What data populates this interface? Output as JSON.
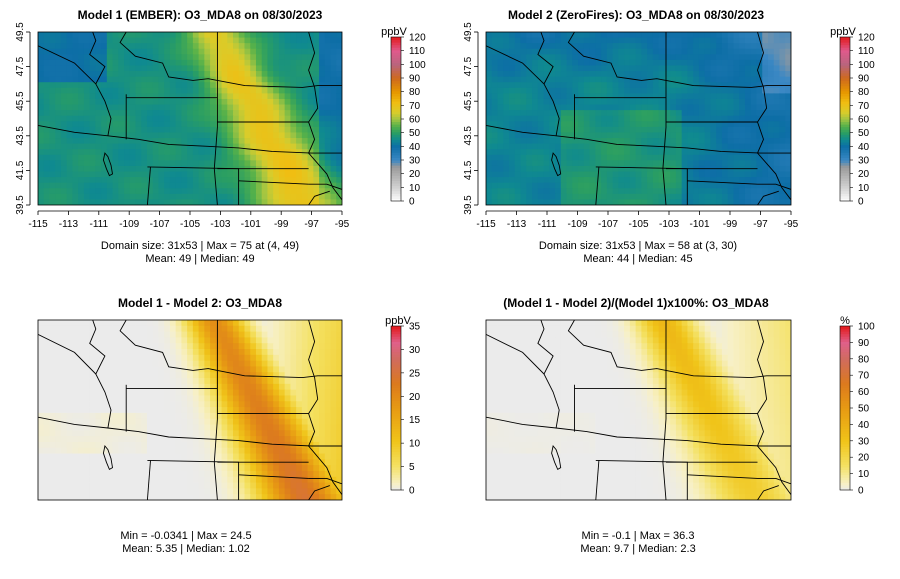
{
  "chart_data": [
    {
      "type": "heatmap",
      "title": "Model 1 (EMBER): O3_MDA8 on 08/30/2023",
      "xlabel": "",
      "ylabel": "",
      "x_ticks": [
        "-115",
        "-113",
        "-111",
        "-109",
        "-107",
        "-105",
        "-103",
        "-101",
        "-99",
        "-97",
        "-95"
      ],
      "y_ticks": [
        "39.5",
        "41.5",
        "43.5",
        "45.5",
        "47.5",
        "49.5"
      ],
      "colorbar": {
        "unit": "ppbV",
        "ticks": [
          "0",
          "10",
          "20",
          "30",
          "40",
          "50",
          "60",
          "70",
          "80",
          "90",
          "100",
          "110",
          "120"
        ],
        "range": [
          0,
          120
        ],
        "scheme": "absolute"
      },
      "stats": [
        "Domain size: 31x53 | Max = 75 at (4, 49)",
        "Mean: 49 |  Median: 49"
      ],
      "field": {
        "kind": "m1",
        "base": 47,
        "band": 72
      }
    },
    {
      "type": "heatmap",
      "title": "Model 2 (ZeroFires): O3_MDA8 on 08/30/2023",
      "xlabel": "",
      "ylabel": "",
      "x_ticks": [
        "-115",
        "-113",
        "-111",
        "-109",
        "-107",
        "-105",
        "-103",
        "-101",
        "-99",
        "-97",
        "-95"
      ],
      "y_ticks": [
        "39.5",
        "41.5",
        "43.5",
        "45.5",
        "47.5",
        "49.5"
      ],
      "colorbar": {
        "unit": "ppbV",
        "ticks": [
          "0",
          "10",
          "20",
          "30",
          "40",
          "50",
          "60",
          "70",
          "80",
          "90",
          "100",
          "110",
          "120"
        ],
        "range": [
          0,
          120
        ],
        "scheme": "absolute"
      },
      "stats": [
        "Domain size: 31x53 | Max = 58 at (3, 30)",
        "Mean: 44 |  Median: 45"
      ],
      "field": {
        "kind": "m2",
        "base": 44,
        "band": 0
      }
    },
    {
      "type": "heatmap",
      "title": "Model 1 - Model 2: O3_MDA8",
      "xlabel": "",
      "ylabel": "",
      "x_ticks": [],
      "y_ticks": [],
      "colorbar": {
        "unit": "ppbV",
        "ticks": [
          "0",
          "5",
          "10",
          "15",
          "20",
          "25",
          "30",
          "35"
        ],
        "range": [
          0,
          35
        ],
        "scheme": "diff"
      },
      "stats": [
        "Min = -0.0341 | Max = 24.5",
        "Mean: 5.35 |  Median: 1.02"
      ],
      "field": {
        "kind": "d",
        "base": 0,
        "band": 24.5
      }
    },
    {
      "type": "heatmap",
      "title": "(Model 1 - Model 2)/(Model 1)x100%: O3_MDA8",
      "xlabel": "",
      "ylabel": "",
      "x_ticks": [],
      "y_ticks": [],
      "colorbar": {
        "unit": "%",
        "ticks": [
          "0",
          "10",
          "20",
          "30",
          "40",
          "50",
          "60",
          "70",
          "80",
          "90",
          "100"
        ],
        "range": [
          0,
          100
        ],
        "scheme": "diff"
      },
      "stats": [
        "Min = -0.1 | Max = 36.3",
        "Mean: 9.7 |  Median: 2.3"
      ],
      "field": {
        "kind": "p",
        "base": 0,
        "band": 36.3
      }
    }
  ]
}
